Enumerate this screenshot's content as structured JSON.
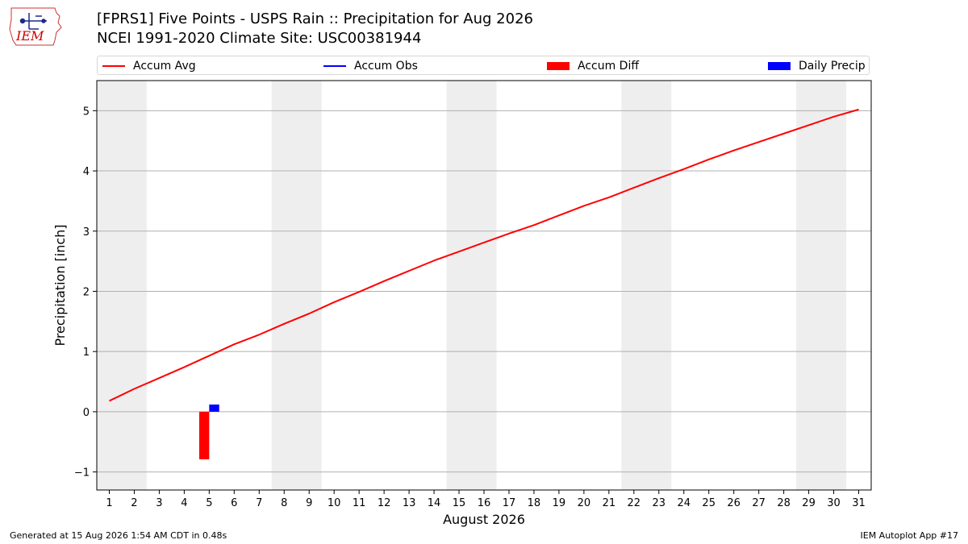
{
  "header": {
    "logo_text": "IEM",
    "title_line1": "[FPRS1] Five Points - USPS Rain :: Precipitation for Aug 2026",
    "title_line2": "NCEI 1991-2020 Climate Site: USC00381944"
  },
  "legend": {
    "accum_avg": "Accum Avg",
    "accum_obs": "Accum Obs",
    "accum_diff": "Accum Diff",
    "daily_precip": "Daily Precip"
  },
  "footer": {
    "generated": "Generated at 15 Aug 2026 1:54 AM CDT in 0.48s",
    "app": "IEM Autoplot App #17"
  },
  "colors": {
    "accum_avg": "#ff0000",
    "accum_obs": "#0000ff",
    "accum_diff": "#ff0000",
    "daily_precip": "#0000ff",
    "weekend_shade": "#eeeeee",
    "grid": "#b0b0b0"
  },
  "chart_data": {
    "type": "line",
    "xlabel": "August 2026",
    "ylabel": "Precipitation [inch]",
    "xlim": [
      0.5,
      31.5
    ],
    "ylim": [
      -1.3,
      5.5
    ],
    "yticks": [
      -1,
      0,
      1,
      2,
      3,
      4,
      5
    ],
    "ytick_labels": [
      "−1",
      "0",
      "1",
      "2",
      "3",
      "4",
      "5"
    ],
    "x": [
      1,
      2,
      3,
      4,
      5,
      6,
      7,
      8,
      9,
      10,
      11,
      12,
      13,
      14,
      15,
      16,
      17,
      18,
      19,
      20,
      21,
      22,
      23,
      24,
      25,
      26,
      27,
      28,
      29,
      30,
      31
    ],
    "xtick_labels": [
      "1",
      "2",
      "3",
      "4",
      "5",
      "6",
      "7",
      "8",
      "9",
      "10",
      "11",
      "12",
      "13",
      "14",
      "15",
      "16",
      "17",
      "18",
      "19",
      "20",
      "21",
      "22",
      "23",
      "24",
      "25",
      "26",
      "27",
      "28",
      "29",
      "30",
      "31"
    ],
    "weekend_spans": [
      [
        0.5,
        2.5
      ],
      [
        7.5,
        9.5
      ],
      [
        14.5,
        16.5
      ],
      [
        21.5,
        23.5
      ],
      [
        28.5,
        30.5
      ]
    ],
    "series": [
      {
        "name": "Accum Avg",
        "kind": "line",
        "x": [
          1,
          2,
          3,
          4,
          5,
          6,
          7,
          8,
          9,
          10,
          11,
          12,
          13,
          14,
          15,
          16,
          17,
          18,
          19,
          20,
          21,
          22,
          23,
          24,
          25,
          26,
          27,
          28,
          29,
          30,
          31
        ],
        "values": [
          0.18,
          0.38,
          0.56,
          0.74,
          0.93,
          1.12,
          1.28,
          1.46,
          1.63,
          1.82,
          1.99,
          2.17,
          2.34,
          2.51,
          2.66,
          2.81,
          2.96,
          3.1,
          3.26,
          3.42,
          3.56,
          3.72,
          3.88,
          4.03,
          4.19,
          4.34,
          4.48,
          4.62,
          4.76,
          4.9,
          5.02
        ]
      },
      {
        "name": "Accum Diff",
        "kind": "bar",
        "x": [
          4.8
        ],
        "values": [
          -0.79
        ]
      },
      {
        "name": "Daily Precip",
        "kind": "bar",
        "x": [
          5.2
        ],
        "values": [
          0.12
        ]
      }
    ],
    "grid": "horizontal",
    "legend_position": "top"
  }
}
